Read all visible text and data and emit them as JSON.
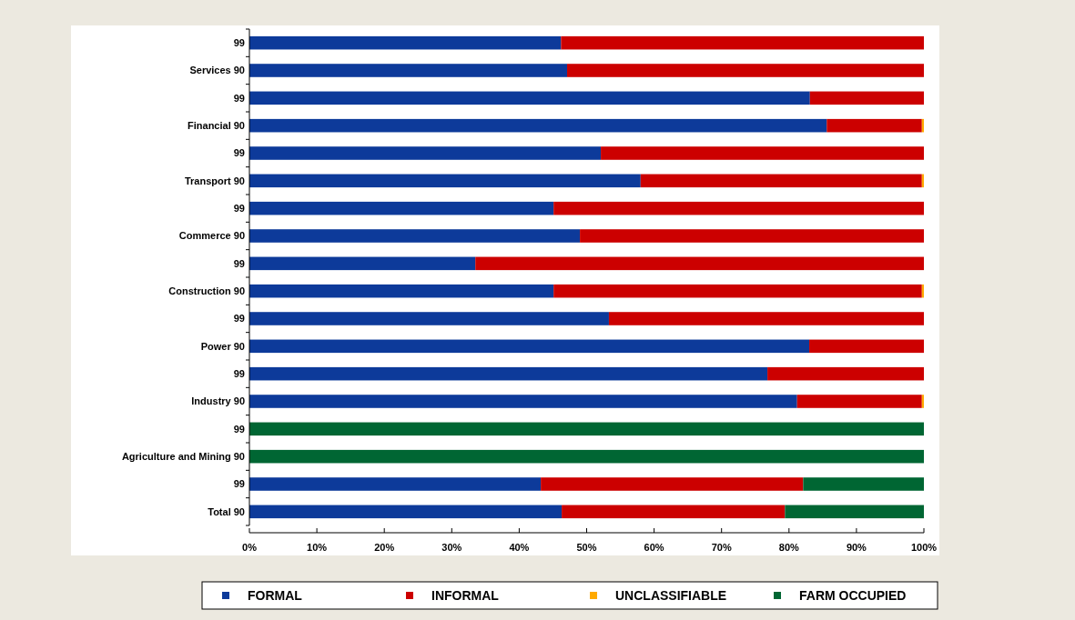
{
  "chart_data": {
    "type": "bar",
    "orientation": "horizontal",
    "stacked": true,
    "categories": [
      "99",
      "Services 90",
      "99",
      "Financial 90",
      "99",
      "Transport 90",
      "99",
      "Commerce 90",
      "99",
      "Construction 90",
      "99",
      "Power 90",
      "99",
      "Industry 90",
      "99",
      "Agriculture and Mining 90",
      "99",
      "Total 90"
    ],
    "series": [
      {
        "name": "FORMAL",
        "color": "#0d3a9a",
        "values": [
          46.2,
          47.1,
          83.1,
          85.6,
          52.1,
          58.0,
          45.1,
          49.0,
          33.5,
          45.1,
          53.3,
          83.0,
          76.8,
          81.2,
          0,
          0,
          43.2,
          46.3
        ]
      },
      {
        "name": "INFORMAL",
        "color": "#cc0000",
        "values": [
          53.8,
          52.9,
          16.9,
          14.1,
          47.9,
          41.7,
          54.9,
          51.0,
          66.5,
          54.6,
          46.7,
          17.0,
          23.2,
          18.5,
          0,
          0,
          38.9,
          33.1
        ]
      },
      {
        "name": "UNCLASSIFIABLE",
        "color": "#ffaa00",
        "values": [
          0,
          0,
          0,
          0.3,
          0,
          0.3,
          0,
          0,
          0,
          0.3,
          0,
          0,
          0,
          0.3,
          0,
          0,
          0,
          0
        ]
      },
      {
        "name": "FARM OCCUPIED",
        "color": "#006633",
        "values": [
          0,
          0,
          0,
          0,
          0,
          0,
          0,
          0,
          0,
          0,
          0,
          0,
          0,
          0,
          100,
          100,
          17.9,
          20.6
        ]
      }
    ],
    "xlim": [
      0,
      100
    ],
    "xticks": [
      {
        "value": 0,
        "label": "0%"
      },
      {
        "value": 10,
        "label": "10%"
      },
      {
        "value": 20,
        "label": "20%"
      },
      {
        "value": 30,
        "label": "30%"
      },
      {
        "value": 40,
        "label": "40%"
      },
      {
        "value": 50,
        "label": "50%"
      },
      {
        "value": 60,
        "label": "60%"
      },
      {
        "value": 70,
        "label": "70%"
      },
      {
        "value": 80,
        "label": "80%"
      },
      {
        "value": 90,
        "label": "90%"
      },
      {
        "value": 100,
        "label": "100%"
      }
    ],
    "legend": "bottom",
    "grid": false
  }
}
